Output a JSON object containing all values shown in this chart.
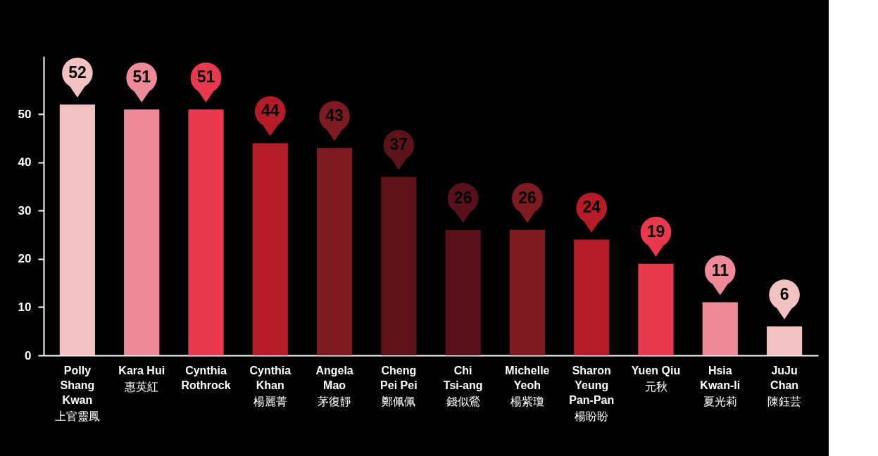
{
  "chart_data": {
    "type": "bar",
    "categories": [
      "Polly Shang Kwan\n上官靈鳳",
      "Kara Hui\n惠英紅",
      "Cynthia Rothrock",
      "Cynthia Khan\n楊麗菁",
      "Angela Mao\n茅復靜",
      "Cheng Pei Pei\n鄭佩佩",
      "Chi Tsi-ang\n錢似鶯",
      "Michelle Yeoh\n楊紫瓊",
      "Sharon Yeung Pan-Pan\n楊盼盼",
      "Yuen Qiu\n元秋",
      "Hsia Kwan-li\n夏光莉",
      "JuJu Chan\n陳鈺芸"
    ],
    "values": [
      52,
      51,
      51,
      44,
      43,
      37,
      26,
      26,
      24,
      19,
      11,
      6
    ],
    "colors": [
      "#f2c1c1",
      "#ee8a9a",
      "#e8394f",
      "#b51c28",
      "#7d1a22",
      "#5e1219",
      "#58111a",
      "#7d1a22",
      "#b51c28",
      "#e8394f",
      "#ee8a9a",
      "#f2c1c1"
    ],
    "ylim": [
      0,
      62
    ],
    "yticks": [
      0,
      10,
      20,
      30,
      40,
      50
    ],
    "grid": false,
    "legend": false,
    "data_labels": true
  }
}
